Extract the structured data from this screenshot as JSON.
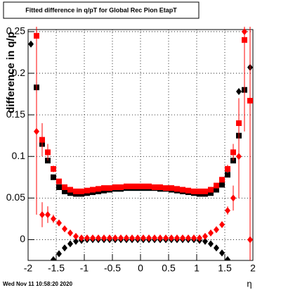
{
  "chart_data": {
    "type": "scatter",
    "title": "Fitted difference in q/pT for Global Rec Pion EtapT",
    "y_label": "difference in q/p",
    "x_label": "η",
    "footer": "Wed Nov 11 10:58:20 2020",
    "xlim": [
      -2,
      2
    ],
    "ylim": [
      -0.025,
      0.2525
    ],
    "xticks": [
      -2,
      -1.5,
      -1,
      -0.5,
      0,
      0.5,
      1,
      1.5,
      2
    ],
    "yticks": [
      0,
      0.05,
      0.1,
      0.15,
      0.2,
      0.25
    ],
    "grid": true,
    "x": [
      -1.95,
      -1.85,
      -1.75,
      -1.65,
      -1.55,
      -1.45,
      -1.35,
      -1.25,
      -1.15,
      -1.05,
      -0.95,
      -0.85,
      -0.75,
      -0.65,
      -0.55,
      -0.45,
      -0.35,
      -0.25,
      -0.15,
      -0.05,
      0.05,
      0.15,
      0.25,
      0.35,
      0.45,
      0.55,
      0.65,
      0.75,
      0.85,
      0.95,
      1.05,
      1.15,
      1.25,
      1.35,
      1.45,
      1.55,
      1.65,
      1.75,
      1.85,
      1.95
    ],
    "series": [
      {
        "marker": "square",
        "color": "#000000",
        "values": [
          null,
          0.183,
          0.115,
          0.095,
          0.075,
          0.063,
          0.058,
          0.056,
          0.055,
          0.055,
          0.056,
          0.057,
          0.058,
          0.059,
          0.06,
          0.061,
          0.061,
          0.062,
          0.062,
          0.062,
          0.062,
          0.062,
          0.062,
          0.061,
          0.061,
          0.06,
          0.059,
          0.058,
          0.057,
          0.056,
          0.055,
          0.055,
          0.056,
          0.06,
          0.066,
          0.078,
          0.095,
          0.125,
          0.18,
          null
        ]
      },
      {
        "marker": "diamond",
        "color": "#000000",
        "values": [
          0.235,
          null,
          null,
          null,
          -0.024,
          -0.017,
          -0.01,
          -0.005,
          -0.002,
          -0.001,
          0,
          0,
          0,
          0,
          0,
          0,
          0,
          0,
          0,
          0,
          0,
          0,
          0,
          0,
          0,
          0,
          0,
          0,
          0,
          0,
          -0.001,
          -0.002,
          -0.005,
          -0.01,
          -0.016,
          -0.024,
          null,
          0.178,
          null,
          0.207
        ]
      },
      {
        "marker": "square",
        "color": "#ff0000",
        "values": [
          null,
          0.245,
          0.12,
          0.105,
          0.085,
          0.07,
          0.063,
          0.06,
          0.058,
          0.058,
          0.059,
          0.06,
          0.061,
          0.062,
          0.062,
          0.063,
          0.063,
          0.064,
          0.064,
          0.064,
          0.064,
          0.064,
          0.063,
          0.063,
          0.062,
          0.062,
          0.061,
          0.06,
          0.059,
          0.058,
          0.058,
          0.058,
          0.06,
          0.065,
          0.072,
          0.085,
          0.105,
          0.14,
          0.24,
          0.167
        ],
        "errors": [
          null,
          0.1,
          0.02,
          0.01,
          0.004,
          0.002,
          0.001,
          0.001,
          0.001,
          0.001,
          0.001,
          0.001,
          0.001,
          0.001,
          0.001,
          0.001,
          0.001,
          0.001,
          0.001,
          0.001,
          0.001,
          0.001,
          0.001,
          0.001,
          0.001,
          0.001,
          0.001,
          0.001,
          0.001,
          0.001,
          0.001,
          0.001,
          0.001,
          0.002,
          0.003,
          0.005,
          0.01,
          0.03,
          0.1,
          0.2
        ]
      },
      {
        "marker": "diamond",
        "color": "#ff0000",
        "values": [
          null,
          0.13,
          0.03,
          0.03,
          0.025,
          0.02,
          0.013,
          0.008,
          0.004,
          0.002,
          0.002,
          0.002,
          0.002,
          0.002,
          0.002,
          0.002,
          0.002,
          0.002,
          0.002,
          0.002,
          0.002,
          0.002,
          0.002,
          0.002,
          0.002,
          0.002,
          0.002,
          0.002,
          0.002,
          0.002,
          0.002,
          0.004,
          0.008,
          0.012,
          0.018,
          0.035,
          0.05,
          0.1,
          0.25,
          0
        ],
        "errors": [
          null,
          0.1,
          0.015,
          0.01,
          0.005,
          0.002,
          0.001,
          0.001,
          0.001,
          0.001,
          0.001,
          0.001,
          0.001,
          0.001,
          0.001,
          0.001,
          0.001,
          0.001,
          0.001,
          0.001,
          0.001,
          0.001,
          0.001,
          0.001,
          0.001,
          0.001,
          0.001,
          0.001,
          0.001,
          0.001,
          0.001,
          0.001,
          0.001,
          0.002,
          0.003,
          0.005,
          0.015,
          0.05,
          0.12,
          0.2
        ]
      }
    ]
  }
}
